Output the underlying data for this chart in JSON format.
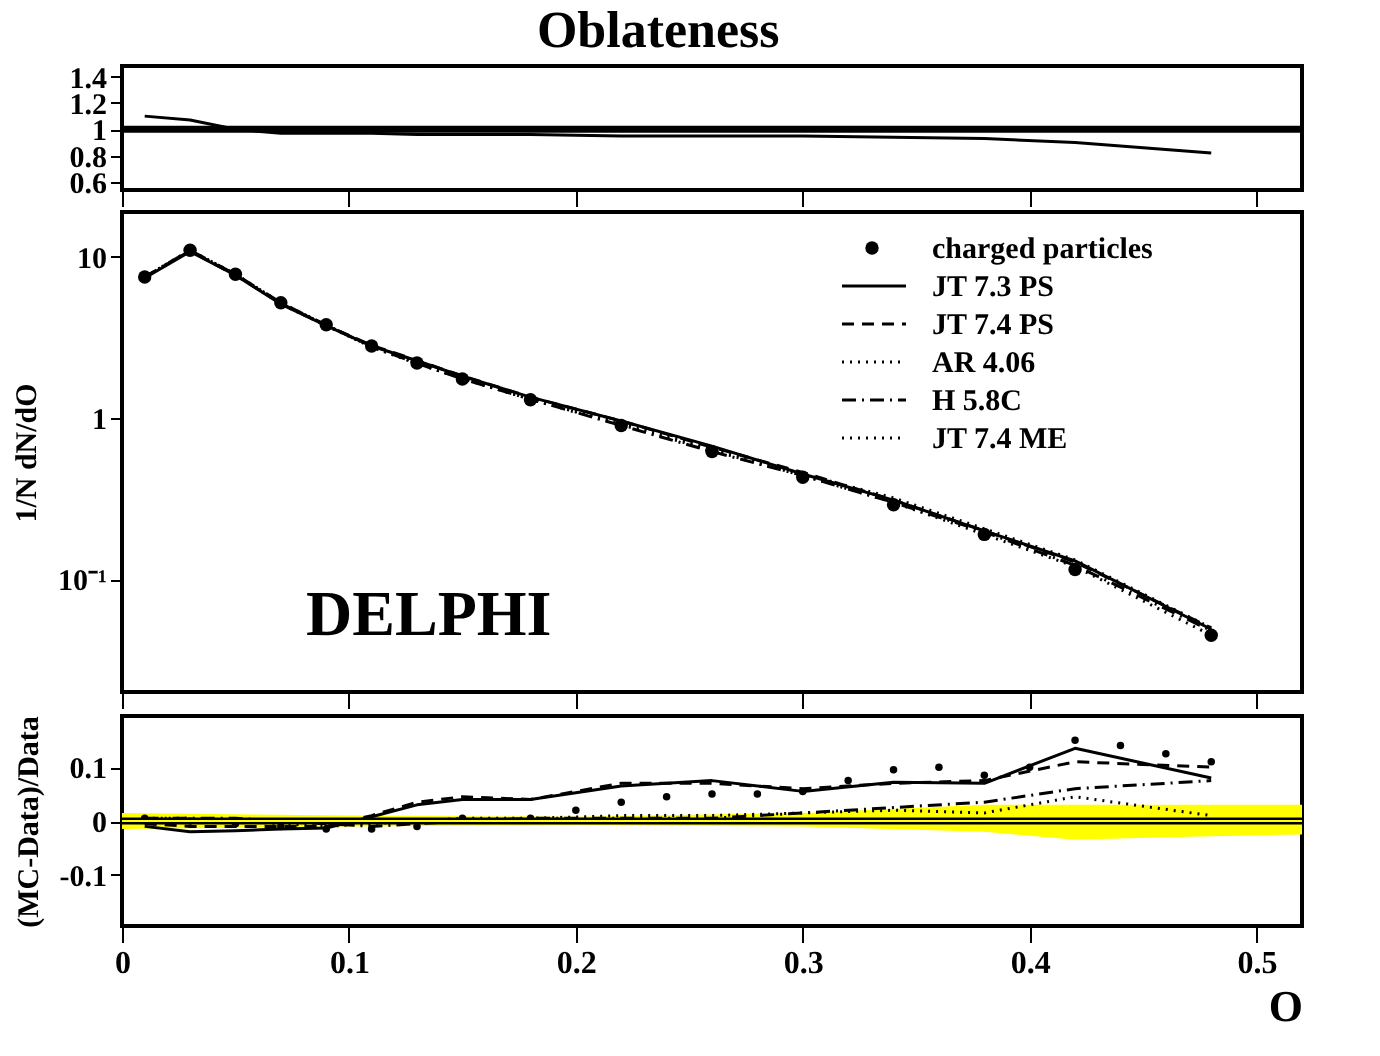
{
  "chart_data": [
    {
      "type": "line",
      "title": "Oblateness",
      "xlim": [
        0,
        0.52
      ],
      "xticks": [
        0,
        0.1,
        0.2,
        0.3,
        0.4,
        0.5
      ],
      "ylim": [
        0.54,
        1.48
      ],
      "yticks": [
        0.6,
        0.8,
        1,
        1.2,
        1.4
      ],
      "tick_labels": "y",
      "grid": false,
      "ref_lines": [
        {
          "axis": "y",
          "value": 1,
          "color": "#000000"
        }
      ],
      "series": [
        {
          "type": "line",
          "color": "#000000",
          "line_style": "solid",
          "x": [
            0.01,
            0.03,
            0.05,
            0.07,
            0.09,
            0.11,
            0.13,
            0.15,
            0.18,
            0.22,
            0.26,
            0.3,
            0.34,
            0.38,
            0.42,
            0.48
          ],
          "values": [
            1.1,
            1.07,
            1.0,
            0.97,
            0.97,
            0.97,
            0.96,
            0.96,
            0.96,
            0.95,
            0.95,
            0.95,
            0.94,
            0.93,
            0.9,
            0.82
          ]
        }
      ]
    },
    {
      "type": "line",
      "ylabel": "1/N dN/dO",
      "xlim": [
        0,
        0.52
      ],
      "xticks": [
        0,
        0.1,
        0.2,
        0.3,
        0.4,
        0.5
      ],
      "ylim": [
        0.02,
        19
      ],
      "yticks": [
        {
          "value": 0.1,
          "label": "10⁻¹"
        },
        1,
        10
      ],
      "log": true,
      "tick_labels": "y",
      "grid": false,
      "legend": "top right",
      "annotations": [
        "DELPHI"
      ],
      "series": [
        {
          "type": "scatter",
          "name": "charged particles",
          "color": "#000000",
          "marker": "circle",
          "x": [
            0.01,
            0.03,
            0.05,
            0.07,
            0.09,
            0.11,
            0.13,
            0.15,
            0.18,
            0.22,
            0.26,
            0.3,
            0.34,
            0.38,
            0.42,
            0.48
          ],
          "values": [
            7.5,
            11,
            7.8,
            5.2,
            3.8,
            2.8,
            2.2,
            1.75,
            1.3,
            0.9,
            0.62,
            0.43,
            0.29,
            0.19,
            0.115,
            0.045
          ]
        },
        {
          "type": "line",
          "name": "JT 7.3 PS",
          "color": "#000000",
          "line_style": "solid",
          "x": [
            0.01,
            0.03,
            0.05,
            0.07,
            0.09,
            0.11,
            0.13,
            0.15,
            0.18,
            0.22,
            0.26,
            0.3,
            0.34,
            0.38,
            0.42,
            0.48
          ],
          "values": [
            7.4,
            10.8,
            7.7,
            5.1,
            3.75,
            2.8,
            2.27,
            1.82,
            1.35,
            0.96,
            0.67,
            0.45,
            0.31,
            0.2,
            0.13,
            0.049
          ]
        },
        {
          "type": "line",
          "name": "JT 7.4 PS",
          "color": "#000000",
          "line_style": "dashed",
          "x": [
            0.01,
            0.03,
            0.05,
            0.07,
            0.09,
            0.11,
            0.13,
            0.15,
            0.18,
            0.22,
            0.26,
            0.3,
            0.34,
            0.38,
            0.42,
            0.48
          ],
          "values": [
            7.5,
            10.9,
            7.7,
            5.15,
            3.76,
            2.83,
            2.28,
            1.83,
            1.35,
            0.96,
            0.66,
            0.46,
            0.31,
            0.2,
            0.128,
            0.05
          ]
        },
        {
          "type": "line",
          "name": "AR 4.06",
          "color": "#000000",
          "line_style": "dotted",
          "x": [
            0.01,
            0.03,
            0.05,
            0.07,
            0.09,
            0.11,
            0.13,
            0.15,
            0.18,
            0.22,
            0.26,
            0.3,
            0.34,
            0.38,
            0.42,
            0.48
          ],
          "values": [
            7.5,
            11,
            7.8,
            5.2,
            3.76,
            2.8,
            2.2,
            1.76,
            1.31,
            0.91,
            0.63,
            0.44,
            0.3,
            0.19,
            0.12,
            0.045
          ]
        },
        {
          "type": "line",
          "name": "H 5.8C",
          "color": "#000000",
          "line_style": "dashdot",
          "x": [
            0.01,
            0.03,
            0.05,
            0.07,
            0.09,
            0.11,
            0.13,
            0.15,
            0.18,
            0.22,
            0.26,
            0.3,
            0.34,
            0.38,
            0.42,
            0.48
          ],
          "values": [
            7.5,
            11,
            7.8,
            5.2,
            3.78,
            2.77,
            2.19,
            1.75,
            1.31,
            0.9,
            0.62,
            0.44,
            0.3,
            0.197,
            0.122,
            0.048
          ]
        },
        {
          "type": "line",
          "name": "JT 7.4 ME",
          "color": "#000000",
          "line_style": "dotted",
          "x": [
            0.01,
            0.03,
            0.05,
            0.07,
            0.09,
            0.11,
            0.13,
            0.15,
            0.18,
            0.22,
            0.26,
            0.3,
            0.34,
            0.38,
            0.42,
            0.48
          ],
          "values": [
            7.5,
            11,
            7.8,
            5.1,
            3.75,
            2.76,
            2.18,
            1.76,
            1.31,
            0.93,
            0.65,
            0.45,
            0.32,
            0.206,
            0.132,
            0.05
          ]
        }
      ]
    },
    {
      "type": "line",
      "ylabel": "(MC-Data)/Data",
      "xlabel": "O",
      "xlim": [
        0,
        0.52
      ],
      "xticks": [
        0,
        0.1,
        0.2,
        0.3,
        0.4,
        0.5
      ],
      "ylim": [
        -0.195,
        0.195
      ],
      "yticks": [
        -0.1,
        0,
        0.1
      ],
      "grid": false,
      "ref_lines": [
        {
          "axis": "y",
          "value": 0,
          "color": "#000000"
        }
      ],
      "series": [
        {
          "type": "line",
          "color": "#ffff00",
          "x": [
            0,
            0.1,
            0.2,
            0.3,
            0.38,
            0.42,
            0.46,
            0.52
          ],
          "values": [
            0,
            0,
            0,
            0,
            0,
            0,
            0,
            0
          ],
          "lower": [
            -0.015,
            -0.01,
            -0.008,
            -0.01,
            -0.02,
            -0.035,
            -0.03,
            -0.025
          ],
          "upper": [
            0.015,
            0.01,
            0.008,
            0.015,
            0.03,
            0.03,
            0.03,
            0.03
          ]
        },
        {
          "type": "line",
          "color": "#000000",
          "line_style": "solid",
          "x": [
            0.01,
            0.03,
            0.05,
            0.07,
            0.09,
            0.11,
            0.13,
            0.15,
            0.18,
            0.22,
            0.26,
            0.3,
            0.34,
            0.38,
            0.42,
            0.48
          ],
          "values": [
            -0.01,
            -0.02,
            -0.018,
            -0.015,
            -0.013,
            0.008,
            0.03,
            0.04,
            0.04,
            0.065,
            0.075,
            0.055,
            0.072,
            0.07,
            0.135,
            0.08
          ]
        },
        {
          "type": "line",
          "color": "#000000",
          "line_style": "dashed",
          "x": [
            0.01,
            0.03,
            0.05,
            0.07,
            0.09,
            0.11,
            0.13,
            0.15,
            0.18,
            0.22,
            0.26,
            0.3,
            0.34,
            0.38,
            0.42,
            0.48
          ],
          "values": [
            -0.005,
            -0.01,
            -0.01,
            -0.01,
            -0.01,
            0.01,
            0.035,
            0.045,
            0.04,
            0.07,
            0.07,
            0.06,
            0.07,
            0.075,
            0.11,
            0.1
          ]
        },
        {
          "type": "line",
          "color": "#000000",
          "line_style": "dotted",
          "x": [
            0.01,
            0.03,
            0.05,
            0.07,
            0.09,
            0.11,
            0.13,
            0.15,
            0.18,
            0.22,
            0.26,
            0.3,
            0.34,
            0.38,
            0.42,
            0.48
          ],
          "values": [
            0.005,
            0.005,
            0,
            -0.005,
            -0.01,
            -0.005,
            0,
            0.005,
            0.005,
            0.01,
            0.01,
            0.015,
            0.02,
            0.015,
            0.045,
            0.01
          ]
        },
        {
          "type": "line",
          "color": "#000000",
          "line_style": "dashdot",
          "x": [
            0.01,
            0.03,
            0.05,
            0.07,
            0.09,
            0.11,
            0.13,
            0.15,
            0.18,
            0.22,
            0.26,
            0.3,
            0.34,
            0.38,
            0.42,
            0.48
          ],
          "values": [
            0.005,
            0.005,
            0.005,
            0,
            -0.005,
            -0.01,
            -0.005,
            0,
            0.005,
            0.005,
            0.005,
            0.015,
            0.025,
            0.035,
            0.06,
            0.075
          ]
        },
        {
          "type": "scatter",
          "color": "#000000",
          "marker": "circle",
          "x": [
            0.01,
            0.03,
            0.05,
            0.07,
            0.09,
            0.11,
            0.13,
            0.15,
            0.18,
            0.2,
            0.22,
            0.24,
            0.26,
            0.28,
            0.3,
            0.32,
            0.34,
            0.36,
            0.38,
            0.4,
            0.42,
            0.44,
            0.46,
            0.48
          ],
          "values": [
            0.005,
            0,
            -0.005,
            -0.01,
            -0.015,
            -0.015,
            -0.01,
            0.005,
            0.005,
            0.02,
            0.035,
            0.045,
            0.05,
            0.05,
            0.055,
            0.075,
            0.095,
            0.1,
            0.085,
            0.1,
            0.15,
            0.14,
            0.125,
            0.11
          ]
        }
      ]
    }
  ]
}
